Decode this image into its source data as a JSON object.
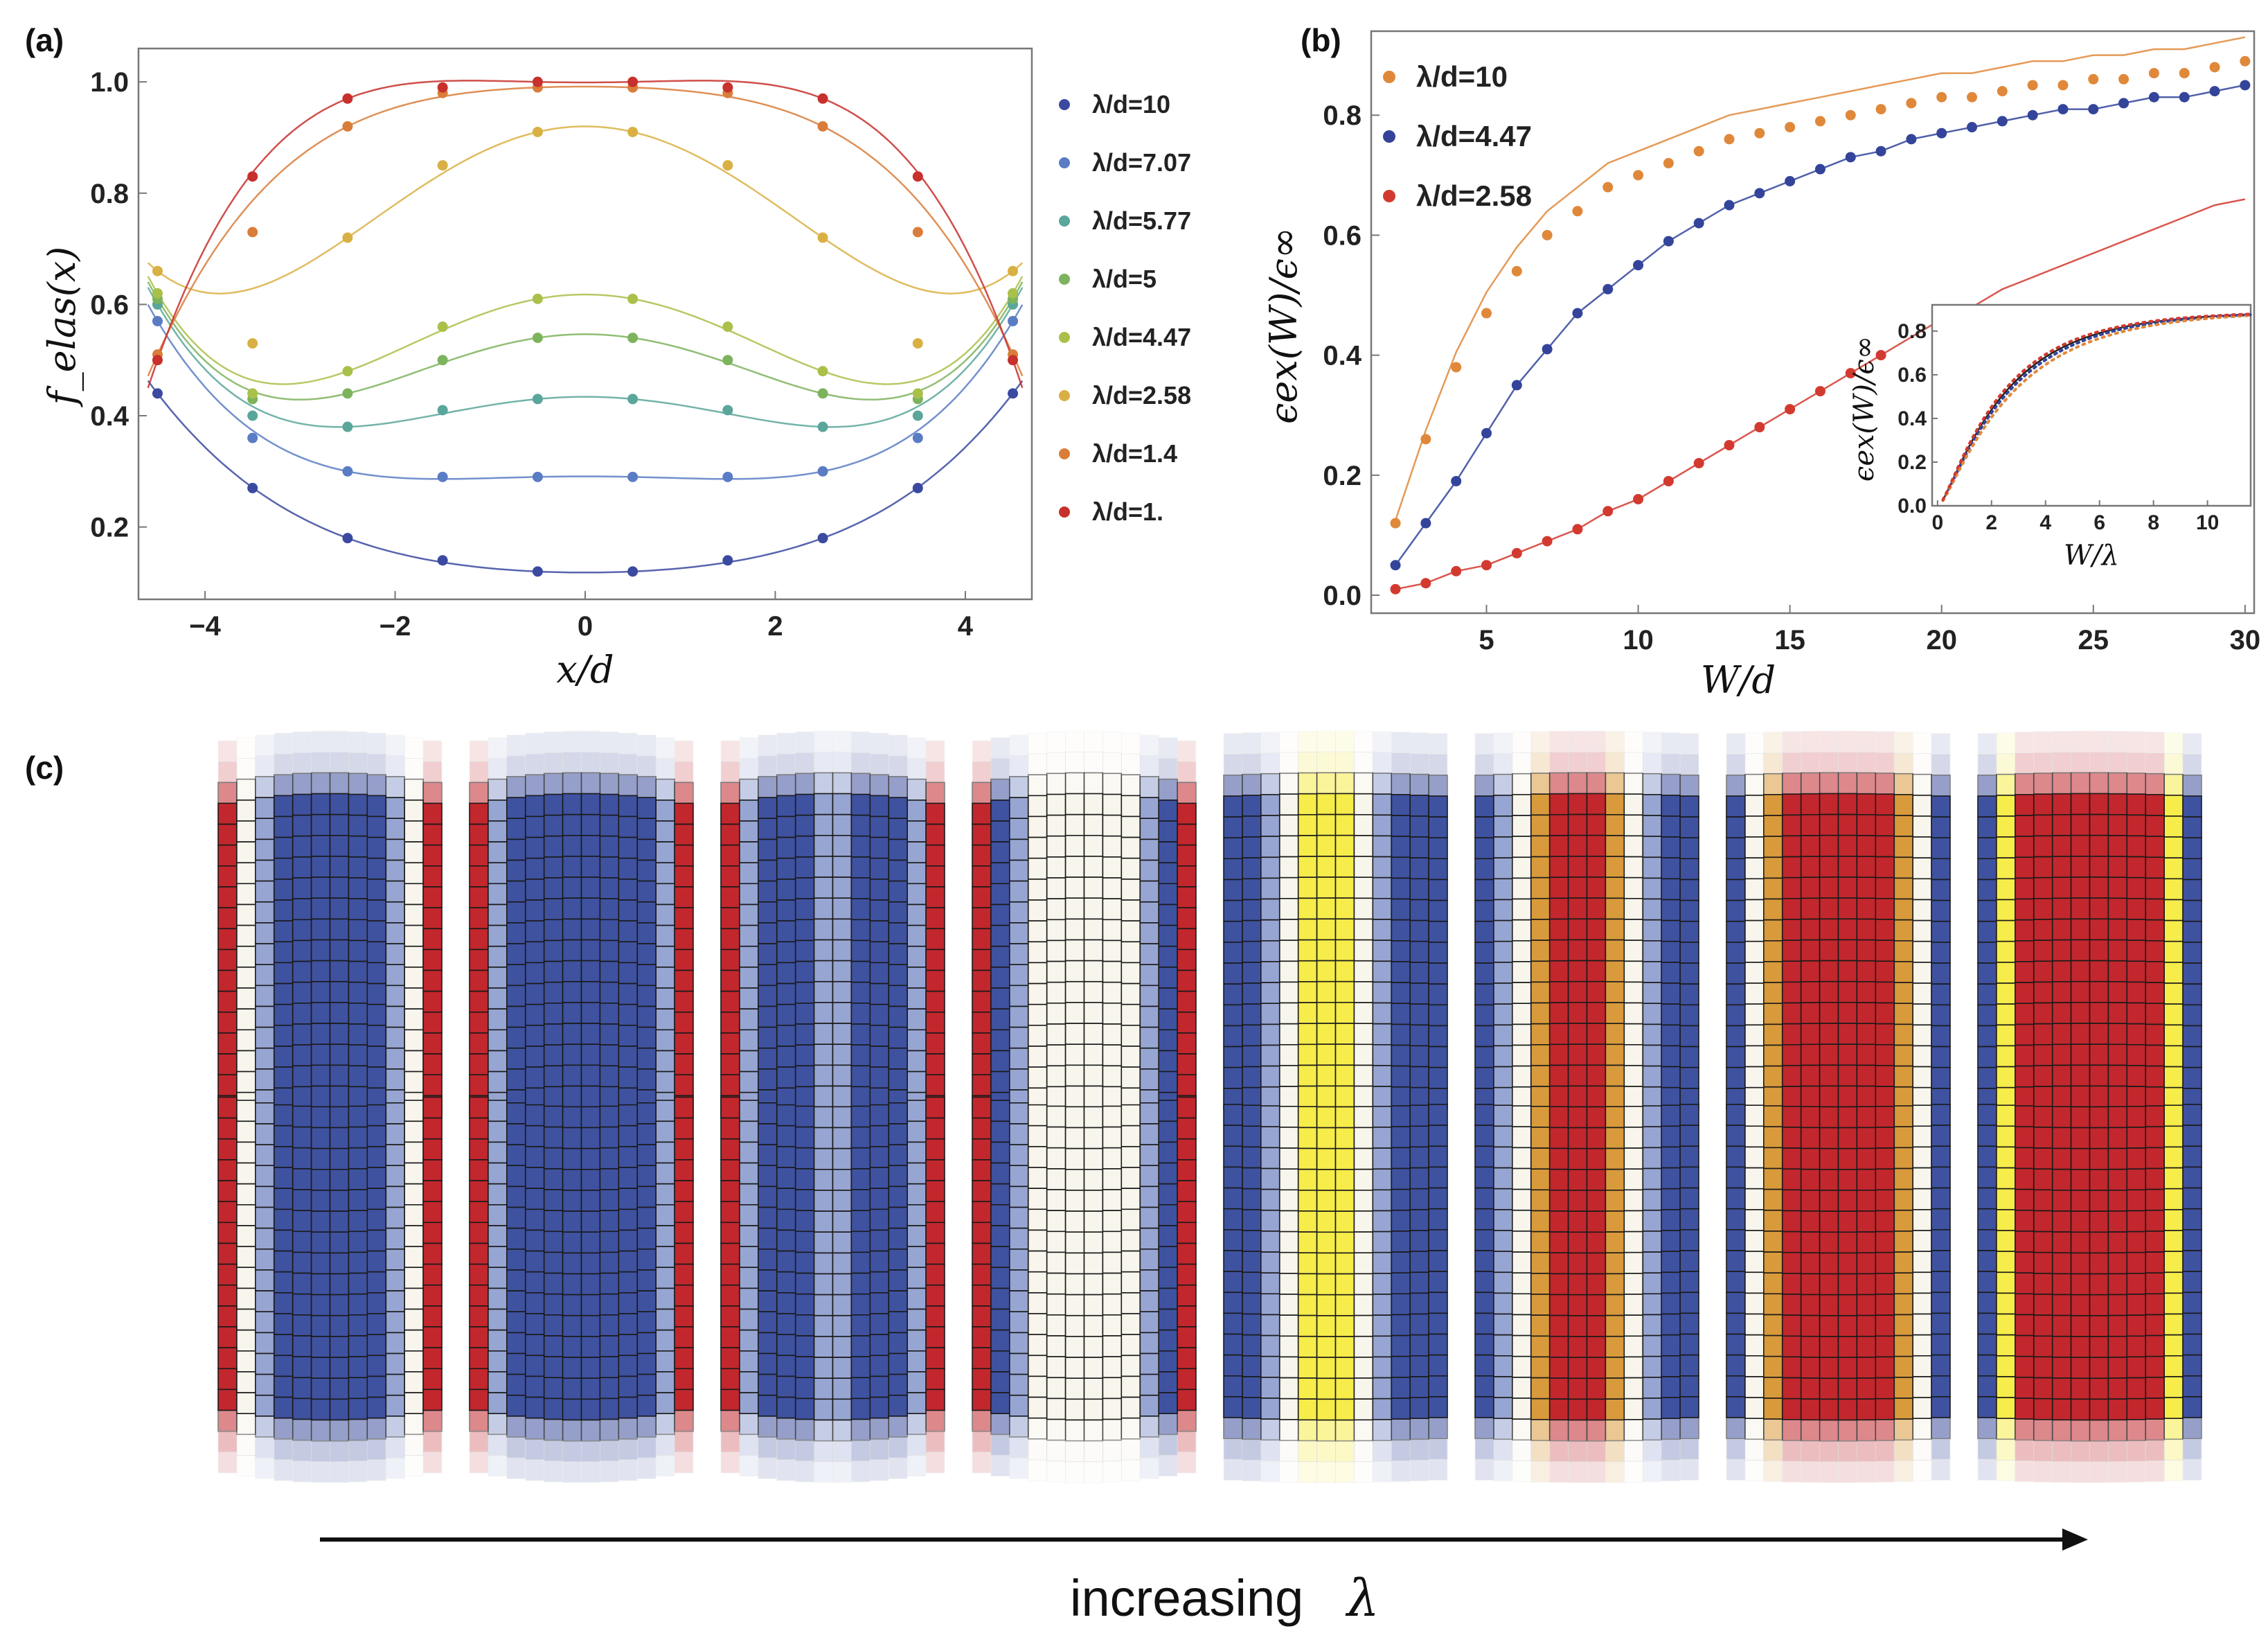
{
  "panels": {
    "a": {
      "label": "(a)",
      "xlabel": "x/d",
      "ylabel": "f_elas(x)",
      "xticks": [
        "−4",
        "−2",
        "0",
        "2",
        "4"
      ],
      "yticks": [
        "0.2",
        "0.4",
        "0.6",
        "0.8",
        "1.0"
      ]
    },
    "b": {
      "label": "(b)",
      "xlabel": "W/d",
      "ylabel": "ϵex(W)/ϵ∞",
      "xticks": [
        "5",
        "10",
        "15",
        "20",
        "25",
        "30"
      ],
      "yticks": [
        "0.0",
        "0.2",
        "0.4",
        "0.6",
        "0.8"
      ]
    },
    "b_inset": {
      "xlabel": "W/λ",
      "ylabel": "ϵex(W)/ϵ∞",
      "xticks": [
        "0",
        "2",
        "4",
        "6",
        "8",
        "10"
      ],
      "yticks": [
        "0.0",
        "0.2",
        "0.4",
        "0.6",
        "0.8"
      ]
    },
    "c": {
      "label": "(c)",
      "caption_text": "increasing",
      "caption_symbol": "λ"
    }
  },
  "colors": {
    "l10": "#3b4aa0",
    "l707": "#5a7cc4",
    "l577": "#5aa69a",
    "l5": "#7db35c",
    "l447": "#a9c04a",
    "l258": "#d9b043",
    "l14": "#d97d3a",
    "l1": "#c7302c",
    "b_l10": "#e0883a",
    "b_l447": "#33449a",
    "b_l258": "#d23a30",
    "tile_blue": "#3f52a0",
    "tile_red": "#c2272d",
    "tile_yellow": "#f6ec4a",
    "tile_orange": "#d99a3c",
    "tile_white": "#f7f5ec"
  },
  "chart_data": [
    {
      "type": "scatter",
      "panel": "a",
      "xlabel": "x/d",
      "ylabel": "f_elas(x)",
      "xlim": [
        -4.7,
        4.7
      ],
      "ylim": [
        0.07,
        1.06
      ],
      "x": [
        -4.5,
        -3.5,
        -2.5,
        -1.5,
        -0.5,
        0.5,
        1.5,
        2.5,
        3.5,
        4.5
      ],
      "series": [
        {
          "name": "λ/d=10",
          "color_key": "l10",
          "values": [
            0.44,
            0.27,
            0.18,
            0.14,
            0.12,
            0.12,
            0.14,
            0.18,
            0.27,
            0.44
          ]
        },
        {
          "name": "λ/d=7.07",
          "color_key": "l707",
          "values": [
            0.57,
            0.36,
            0.3,
            0.29,
            0.29,
            0.29,
            0.29,
            0.3,
            0.36,
            0.57
          ]
        },
        {
          "name": "λ/d=5.77",
          "color_key": "l577",
          "values": [
            0.6,
            0.4,
            0.38,
            0.41,
            0.43,
            0.43,
            0.41,
            0.38,
            0.4,
            0.6
          ]
        },
        {
          "name": "λ/d=5",
          "color_key": "l5",
          "values": [
            0.61,
            0.43,
            0.44,
            0.5,
            0.54,
            0.54,
            0.5,
            0.44,
            0.43,
            0.61
          ]
        },
        {
          "name": "λ/d=4.47",
          "color_key": "l447",
          "values": [
            0.62,
            0.44,
            0.48,
            0.56,
            0.61,
            0.61,
            0.56,
            0.48,
            0.44,
            0.62
          ]
        },
        {
          "name": "λ/d=2.58",
          "color_key": "l258",
          "values": [
            0.66,
            0.53,
            0.72,
            0.85,
            0.91,
            0.91,
            0.85,
            0.72,
            0.53,
            0.66
          ]
        },
        {
          "name": "λ/d=1.4",
          "color_key": "l14",
          "values": [
            0.51,
            0.73,
            0.92,
            0.98,
            0.99,
            0.99,
            0.98,
            0.92,
            0.73,
            0.51
          ]
        },
        {
          "name": "λ/d=1.",
          "color_key": "l1",
          "values": [
            0.5,
            0.83,
            0.97,
            0.99,
            1.0,
            1.0,
            0.99,
            0.97,
            0.83,
            0.5
          ]
        }
      ],
      "legend_position": "right"
    },
    {
      "type": "scatter",
      "panel": "b",
      "xlabel": "W/d",
      "ylabel": "ϵex(W)/ϵ∞",
      "xlim": [
        1.2,
        30.3
      ],
      "ylim": [
        -0.03,
        0.94
      ],
      "x": [
        2,
        3,
        4,
        5,
        6,
        7,
        8,
        9,
        10,
        11,
        12,
        13,
        14,
        15,
        16,
        17,
        18,
        19,
        20,
        21,
        22,
        23,
        24,
        25,
        26,
        27,
        28,
        29,
        30
      ],
      "series": [
        {
          "name": "λ/d=10",
          "color_key": "b_l10",
          "values": [
            0.12,
            0.26,
            0.38,
            0.47,
            0.54,
            0.6,
            0.64,
            0.68,
            0.7,
            0.72,
            0.74,
            0.76,
            0.77,
            0.78,
            0.79,
            0.8,
            0.81,
            0.82,
            0.83,
            0.83,
            0.84,
            0.85,
            0.85,
            0.86,
            0.86,
            0.87,
            0.87,
            0.88,
            0.89
          ]
        },
        {
          "name": "λ/d=4.47",
          "color_key": "b_l447",
          "values": [
            0.05,
            0.12,
            0.19,
            0.27,
            0.35,
            0.41,
            0.47,
            0.51,
            0.55,
            0.59,
            0.62,
            0.65,
            0.67,
            0.69,
            0.71,
            0.73,
            0.74,
            0.76,
            0.77,
            0.78,
            0.79,
            0.8,
            0.81,
            0.81,
            0.82,
            0.83,
            0.83,
            0.84,
            0.85
          ]
        },
        {
          "name": "λ/d=2.58",
          "color_key": "b_l258",
          "values": [
            0.01,
            0.02,
            0.04,
            0.05,
            0.07,
            0.09,
            0.11,
            0.14,
            0.16,
            0.19,
            0.22,
            0.25,
            0.28,
            0.31,
            0.34,
            0.37,
            0.4,
            0.43,
            0.46,
            0.48,
            0.51,
            0.53,
            0.55,
            0.57,
            0.59,
            0.61,
            0.63,
            0.65,
            0.66
          ]
        }
      ],
      "legend_position": "top-left"
    },
    {
      "type": "scatter",
      "panel": "b_inset",
      "xlabel": "W/λ",
      "ylabel": "ϵex(W)/ϵ∞",
      "xlim": [
        -0.2,
        11.6
      ],
      "ylim": [
        0.0,
        0.92
      ],
      "grid": false
    }
  ]
}
